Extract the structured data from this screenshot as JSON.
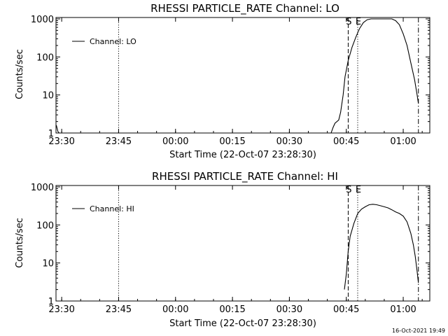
{
  "chart_data": [
    {
      "type": "line",
      "title": "RHESSI PARTICLE_RATE Channel: LO",
      "xlabel": "Start Time (22-Oct-07 23:28:30)",
      "ylabel": "Counts/sec",
      "y_scale": "log",
      "xlim": [
        "23:28:30",
        "01:07:00"
      ],
      "ylim": [
        1,
        1000
      ],
      "x_ticks": [
        "23:30",
        "23:45",
        "00:00",
        "00:15",
        "00:30",
        "00:45",
        "01:00"
      ],
      "y_ticks": [
        "1",
        "10",
        "100",
        "1000"
      ],
      "legend": {
        "placement": "top-left",
        "entries": [
          "Channel: LO"
        ]
      },
      "annotations": [
        {
          "text": "S",
          "x": "00:45:30"
        },
        {
          "text": "E",
          "x": "00:48:00"
        }
      ],
      "vertical_lines": [
        {
          "style": "dotted",
          "x": "23:45:00"
        },
        {
          "style": "dashed",
          "x": "00:45:30"
        },
        {
          "style": "dotted",
          "x": "00:48:00"
        },
        {
          "style": "dash-dot",
          "x": "01:04:00"
        }
      ],
      "series": [
        {
          "x": [
            "23:28:35",
            "23:29:00",
            "23:29:20",
            "00:41:00",
            "00:41:30",
            "00:42:00",
            "00:43:00",
            "00:43:30",
            "00:44:10",
            "00:44:40",
            "00:45:30",
            "00:46:30",
            "00:47:30",
            "00:48:30",
            "00:49:30",
            "00:50:30",
            "00:51:30",
            "00:52:30",
            "00:53:30",
            "00:54:30",
            "00:56:00",
            "00:57:00",
            "00:58:00",
            "00:59:00",
            "01:00:00",
            "01:01:00",
            "01:02:00",
            "01:03:00",
            "01:03:40",
            "01:04:00"
          ],
          "y": [
            1.6,
            1.1,
            1.0,
            1.0,
            1.4,
            1.8,
            2.2,
            3.5,
            10,
            30,
            80,
            180,
            330,
            560,
            800,
            950,
            1000,
            1000,
            1000,
            1000,
            1000,
            1000,
            900,
            700,
            400,
            200,
            70,
            25,
            10,
            6
          ]
        }
      ]
    },
    {
      "type": "line",
      "title": "RHESSI PARTICLE_RATE Channel: HI",
      "xlabel": "Start Time (22-Oct-07 23:28:30)",
      "ylabel": "Counts/sec",
      "y_scale": "log",
      "xlim": [
        "23:28:30",
        "01:07:00"
      ],
      "ylim": [
        1,
        1000
      ],
      "x_ticks": [
        "23:30",
        "23:45",
        "00:00",
        "00:15",
        "00:30",
        "00:45",
        "01:00"
      ],
      "y_ticks": [
        "1",
        "10",
        "100",
        "1000"
      ],
      "legend": {
        "placement": "top-left",
        "entries": [
          "Channel: HI"
        ]
      },
      "annotations": [
        {
          "text": "S",
          "x": "00:45:30"
        },
        {
          "text": "E",
          "x": "00:48:00"
        }
      ],
      "vertical_lines": [
        {
          "style": "dotted",
          "x": "23:45:00"
        },
        {
          "style": "dashed",
          "x": "00:45:30"
        },
        {
          "style": "dotted",
          "x": "00:48:00"
        },
        {
          "style": "dash-dot",
          "x": "01:04:00"
        }
      ],
      "series": [
        {
          "x": [
            "00:44:30",
            "00:45:00",
            "00:45:30",
            "00:46:00",
            "00:47:00",
            "00:48:00",
            "00:49:00",
            "00:50:00",
            "00:51:00",
            "00:52:00",
            "00:53:00",
            "00:54:00",
            "00:55:00",
            "00:56:00",
            "00:57:00",
            "00:58:00",
            "00:59:00",
            "01:00:00",
            "01:01:00",
            "01:02:00",
            "01:02:40",
            "01:03:10",
            "01:03:40",
            "01:04:00"
          ],
          "y": [
            2,
            5,
            20,
            50,
            110,
            200,
            260,
            300,
            340,
            350,
            340,
            320,
            300,
            280,
            250,
            220,
            200,
            170,
            120,
            60,
            30,
            15,
            6,
            3
          ]
        }
      ]
    }
  ],
  "timestamp": "16-Oct-2021 19:49"
}
